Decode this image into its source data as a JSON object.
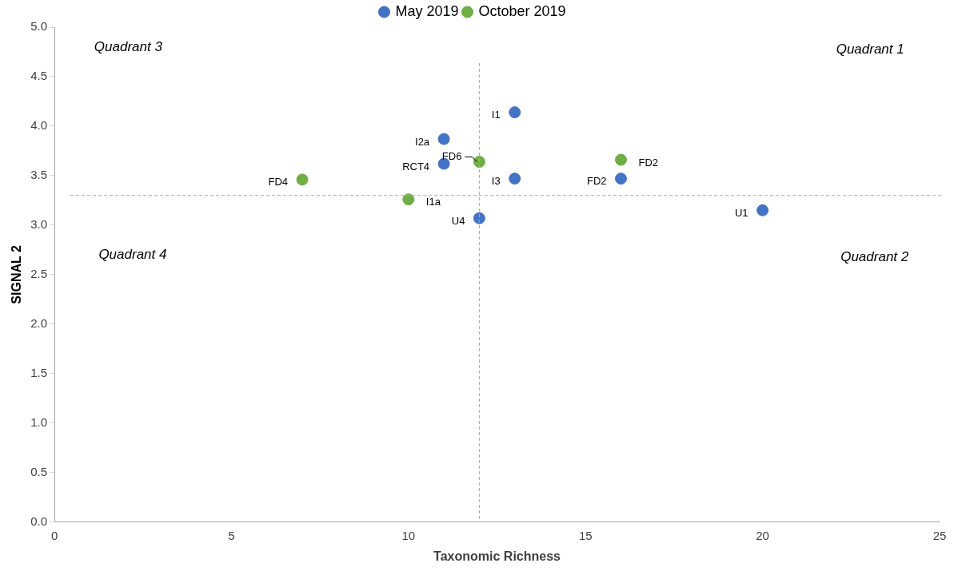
{
  "chart_data": {
    "type": "scatter",
    "xlabel": "Taxonomic Richness",
    "ylabel": "SIGNAL 2",
    "series": [
      {
        "name": "May 2019",
        "color": "#4472c4",
        "x": [
          13,
          11,
          11,
          13,
          16,
          12,
          20
        ],
        "values": [
          4.14,
          3.87,
          3.62,
          3.47,
          3.47,
          3.07,
          3.15
        ],
        "value_labels": [
          "I1",
          "I2a",
          "RCT4",
          "I3",
          "FD2",
          "U4",
          "U1"
        ]
      },
      {
        "name": "October 2019",
        "color": "#70ad47",
        "x": [
          12,
          16,
          7,
          10
        ],
        "values": [
          3.64,
          3.66,
          3.46,
          3.26
        ],
        "value_labels": [
          "FD6",
          "FD2",
          "FD4",
          "I1a"
        ]
      }
    ],
    "xlim": [
      0,
      25
    ],
    "xticks": [
      0,
      5,
      10,
      15,
      20,
      25
    ],
    "ylim": [
      0,
      5
    ],
    "yticks": [
      {
        "value": 0,
        "label": "0.0"
      },
      {
        "value": 0.5,
        "label": "0.5"
      },
      {
        "value": 1,
        "label": "1.0"
      },
      {
        "value": 1.5,
        "label": "1.5"
      },
      {
        "value": 2,
        "label": "2.0"
      },
      {
        "value": 2.5,
        "label": "2.5"
      },
      {
        "value": 3,
        "label": "3.0"
      },
      {
        "value": 3.5,
        "label": "3.5"
      },
      {
        "value": 4,
        "label": "4.0"
      },
      {
        "value": 4.5,
        "label": "4.5"
      },
      {
        "value": 5,
        "label": "5.0"
      }
    ],
    "ref_lines": [
      {
        "axis": "x",
        "value": 12,
        "color": "#a6a6a6",
        "line_style": "dashed"
      },
      {
        "axis": "y",
        "value": 3.3,
        "color": "#a6a6a6",
        "line_style": "dashed"
      }
    ],
    "annotations": [
      "Quadrant 3",
      "Quadrant 1",
      "Quadrant 4",
      "Quadrant 2"
    ],
    "legend": "top",
    "marker": "circle",
    "grid": false
  }
}
